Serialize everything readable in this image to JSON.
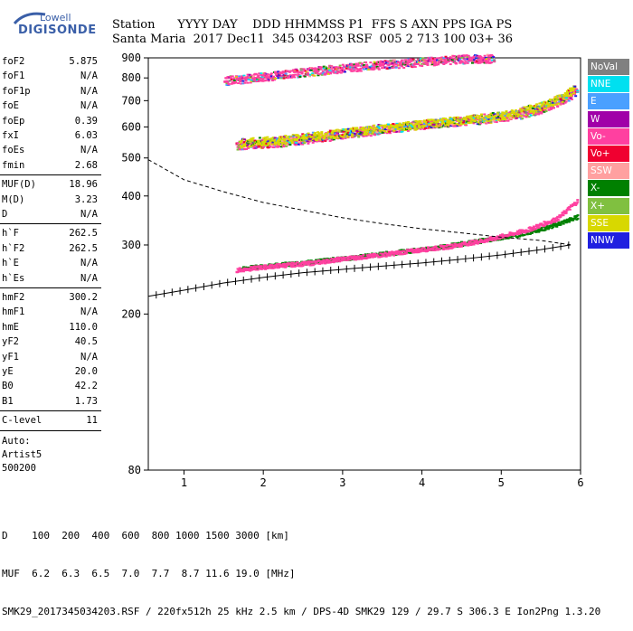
{
  "logo": {
    "top": "Lowell",
    "bottom": "DIGISONDE"
  },
  "header": {
    "labels": "Station      YYYY DAY    DDD HHMMSS P1  FFS S AXN PPS IGA PS",
    "values": "Santa Maria  2017 Dec11  345 034203 RSF  005 2 713 100 03+ 36"
  },
  "params": [
    {
      "label": "foF2",
      "value": "5.875"
    },
    {
      "label": "foF1",
      "value": "N/A"
    },
    {
      "label": "foF1p",
      "value": "N/A"
    },
    {
      "label": "foE",
      "value": "N/A"
    },
    {
      "label": "foEp",
      "value": "0.39"
    },
    {
      "label": "fxI",
      "value": "6.03"
    },
    {
      "label": "foEs",
      "value": "N/A"
    },
    {
      "label": "fmin",
      "value": "2.68"
    },
    {
      "label": "MUF(D)",
      "value": "18.96"
    },
    {
      "label": "M(D)",
      "value": "3.23"
    },
    {
      "label": "D",
      "value": "N/A"
    },
    {
      "label": "h`F",
      "value": "262.5"
    },
    {
      "label": "h`F2",
      "value": "262.5"
    },
    {
      "label": "h`E",
      "value": "N/A"
    },
    {
      "label": "h`Es",
      "value": "N/A"
    },
    {
      "label": "hmF2",
      "value": "300.2"
    },
    {
      "label": "hmF1",
      "value": "N/A"
    },
    {
      "label": "hmE",
      "value": "110.0"
    },
    {
      "label": "yF2",
      "value": "40.5"
    },
    {
      "label": "yF1",
      "value": "N/A"
    },
    {
      "label": "yE",
      "value": "20.0"
    },
    {
      "label": "B0",
      "value": "42.2"
    },
    {
      "label": "B1",
      "value": "1.73"
    },
    {
      "label": "C-level",
      "value": "11"
    }
  ],
  "auto": {
    "line1": "Auto:",
    "line2": "Artist5",
    "line3": "500200"
  },
  "legend": [
    {
      "label": "NoVal",
      "color": "#808080"
    },
    {
      "label": "NNE",
      "color": "#00e0f0"
    },
    {
      "label": "E",
      "color": "#4aa0ff"
    },
    {
      "label": "W",
      "color": "#a000a8"
    },
    {
      "label": "Vo-",
      "color": "#ff40a0"
    },
    {
      "label": "Vo+",
      "color": "#f00030"
    },
    {
      "label": "SSW",
      "color": "#ffa0a0"
    },
    {
      "label": "X-",
      "color": "#008000"
    },
    {
      "label": "X+",
      "color": "#80c040"
    },
    {
      "label": "SSE",
      "color": "#d8d800"
    },
    {
      "label": "NNW",
      "color": "#2020e0"
    }
  ],
  "footer": {
    "line1": "D    100  200  400  600  800 1000 1500 3000 [km]",
    "line2": "MUF  6.2  6.3  6.5  7.0  7.7  8.7 11.6 19.0 [MHz]",
    "line3": "SMK29_2017345034203.RSF / 220fx512h 25 kHz 2.5 km / DPS-4D SMK29 129 / 29.7 S 306.3 E Ion2Png 1.3.20"
  },
  "chart_data": {
    "type": "scatter",
    "xlim": [
      0.55,
      6.0
    ],
    "ylim": [
      80,
      900
    ],
    "x_ticks": [
      1,
      2,
      3,
      4,
      5,
      6
    ],
    "y_ticks": [
      80,
      200,
      300,
      400,
      500,
      600,
      700,
      800,
      900
    ],
    "y_scale": "log",
    "series": [
      {
        "name": "X-",
        "color": "#008000",
        "points": [
          [
            1.7,
            262
          ],
          [
            2.2,
            268
          ],
          [
            2.7,
            274
          ],
          [
            3.2,
            281
          ],
          [
            3.7,
            289
          ],
          [
            4.2,
            297
          ],
          [
            4.7,
            308
          ],
          [
            5.2,
            320
          ],
          [
            5.6,
            335
          ],
          [
            5.95,
            355
          ]
        ]
      },
      {
        "name": "Vo-",
        "color": "#ff40a0",
        "points": [
          [
            1.65,
            260
          ],
          [
            2.1,
            266
          ],
          [
            2.6,
            271
          ],
          [
            3.0,
            278
          ],
          [
            3.4,
            283
          ],
          [
            3.8,
            290
          ],
          [
            4.3,
            298
          ],
          [
            4.8,
            310
          ],
          [
            5.3,
            328
          ],
          [
            5.7,
            352
          ],
          [
            5.95,
            390
          ]
        ]
      },
      {
        "name": "Vo-",
        "color": "#ff40a0",
        "points": [
          [
            1.65,
            540
          ],
          [
            2.2,
            550
          ],
          [
            2.7,
            565
          ],
          [
            3.2,
            582
          ],
          [
            3.7,
            600
          ],
          [
            4.2,
            615
          ],
          [
            4.7,
            628
          ],
          [
            5.2,
            645
          ],
          [
            5.5,
            670
          ],
          [
            5.8,
            710
          ],
          [
            5.95,
            745
          ]
        ]
      },
      {
        "name": "SSE",
        "color": "#d8d800",
        "points": [
          [
            1.7,
            548
          ],
          [
            2.3,
            560
          ],
          [
            2.9,
            578
          ],
          [
            3.5,
            598
          ],
          [
            4.0,
            612
          ],
          [
            4.6,
            630
          ],
          [
            5.1,
            648
          ],
          [
            5.5,
            680
          ],
          [
            5.8,
            722
          ],
          [
            5.92,
            760
          ]
        ]
      },
      {
        "name": "Vo-",
        "color": "#ff40a0",
        "points": [
          [
            1.5,
            790
          ],
          [
            2.0,
            808
          ],
          [
            2.5,
            830
          ],
          [
            3.0,
            850
          ],
          [
            3.5,
            868
          ],
          [
            4.0,
            882
          ],
          [
            4.4,
            895
          ],
          [
            4.9,
            900
          ]
        ]
      }
    ],
    "profile": [
      [
        0.55,
        222
      ],
      [
        1.0,
        230
      ],
      [
        1.5,
        240
      ],
      [
        2.0,
        248
      ],
      [
        2.5,
        255
      ],
      [
        3.0,
        260
      ],
      [
        3.5,
        265
      ],
      [
        4.0,
        270
      ],
      [
        4.5,
        276
      ],
      [
        5.0,
        283
      ],
      [
        5.5,
        292
      ],
      [
        5.875,
        300.2
      ]
    ],
    "extraordinary_trace": [
      [
        0.55,
        495
      ],
      [
        1.0,
        440
      ],
      [
        1.5,
        410
      ],
      [
        2.0,
        385
      ],
      [
        2.5,
        368
      ],
      [
        3.0,
        352
      ],
      [
        3.5,
        340
      ],
      [
        4.0,
        330
      ],
      [
        4.5,
        322
      ],
      [
        5.0,
        314
      ],
      [
        5.5,
        308
      ],
      [
        5.875,
        300.2
      ]
    ]
  }
}
